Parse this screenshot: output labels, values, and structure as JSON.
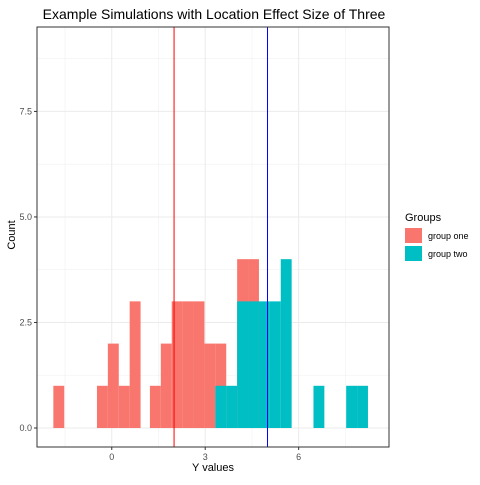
{
  "chart_data": {
    "type": "bar",
    "title": "Example Simulations with Location Effect Size of Three",
    "xlabel": "Y values",
    "ylabel": "Count",
    "xlim": [
      -2.4,
      8.9
    ],
    "ylim": [
      -0.45,
      9.5
    ],
    "x_ticks": [
      0,
      3,
      6
    ],
    "x_tick_labels": [
      "0",
      "3",
      "6"
    ],
    "y_ticks": [
      0,
      2.5,
      5,
      7.5
    ],
    "y_tick_labels": [
      "0.0",
      "2.5",
      "5.0",
      "7.5"
    ],
    "grid": true,
    "bin_width": 0.35,
    "legend": {
      "title": "Groups",
      "placement": "right",
      "entries": [
        "group one",
        "group two"
      ]
    },
    "series": [
      {
        "name": "group one",
        "color": "#F8766D",
        "bins": [
          {
            "x": -1.7,
            "count": 1
          },
          {
            "x": -0.3,
            "count": 1
          },
          {
            "x": 0.05,
            "count": 2
          },
          {
            "x": 0.4,
            "count": 1
          },
          {
            "x": 0.75,
            "count": 3
          },
          {
            "x": 1.4,
            "count": 1
          },
          {
            "x": 1.75,
            "count": 2
          },
          {
            "x": 2.1,
            "count": 3
          },
          {
            "x": 2.45,
            "count": 3
          },
          {
            "x": 2.8,
            "count": 3
          },
          {
            "x": 3.15,
            "count": 2
          },
          {
            "x": 3.5,
            "count": 2
          },
          {
            "x": 4.2,
            "count": 4
          },
          {
            "x": 4.55,
            "count": 4
          }
        ]
      },
      {
        "name": "group two",
        "color": "#00BFC4",
        "bins": [
          {
            "x": 3.5,
            "count": 1
          },
          {
            "x": 3.85,
            "count": 1
          },
          {
            "x": 4.2,
            "count": 3
          },
          {
            "x": 4.55,
            "count": 3
          },
          {
            "x": 4.9,
            "count": 3
          },
          {
            "x": 5.25,
            "count": 3
          },
          {
            "x": 5.6,
            "count": 4
          },
          {
            "x": 6.65,
            "count": 1
          },
          {
            "x": 7.7,
            "count": 1
          },
          {
            "x": 8.05,
            "count": 1
          }
        ]
      }
    ],
    "vlines": [
      {
        "x": 2.0,
        "color": "#FF0000"
      },
      {
        "x": 5.0,
        "color": "#0000FF"
      }
    ]
  }
}
